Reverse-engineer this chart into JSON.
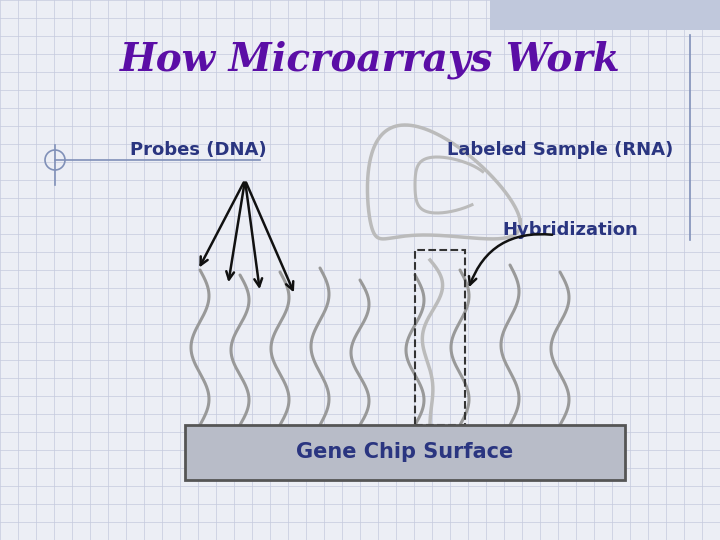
{
  "title": "How Microarrays Work",
  "title_color": "#5B0EA6",
  "title_fontsize": 28,
  "label_probes": "Probes (DNA)",
  "label_sample": "Labeled Sample (RNA)",
  "label_hybrid": "Hybridization",
  "label_chip": "Gene Chip Surface",
  "label_color": "#2a3580",
  "label_fontsize": 13,
  "bg_color": "#eceef5",
  "grid_color": "#c5c9de",
  "chip_color": "#b8bcc8",
  "chip_edge_color": "#555555",
  "chip_text_color": "#2a3580",
  "strand_color": "#999999",
  "rna_strand_color": "#bbbbbb",
  "arrow_color": "#111111",
  "dashed_box_color": "#333333",
  "deco_color": "#8090b8",
  "top_rect_color": "#c0c8dc"
}
